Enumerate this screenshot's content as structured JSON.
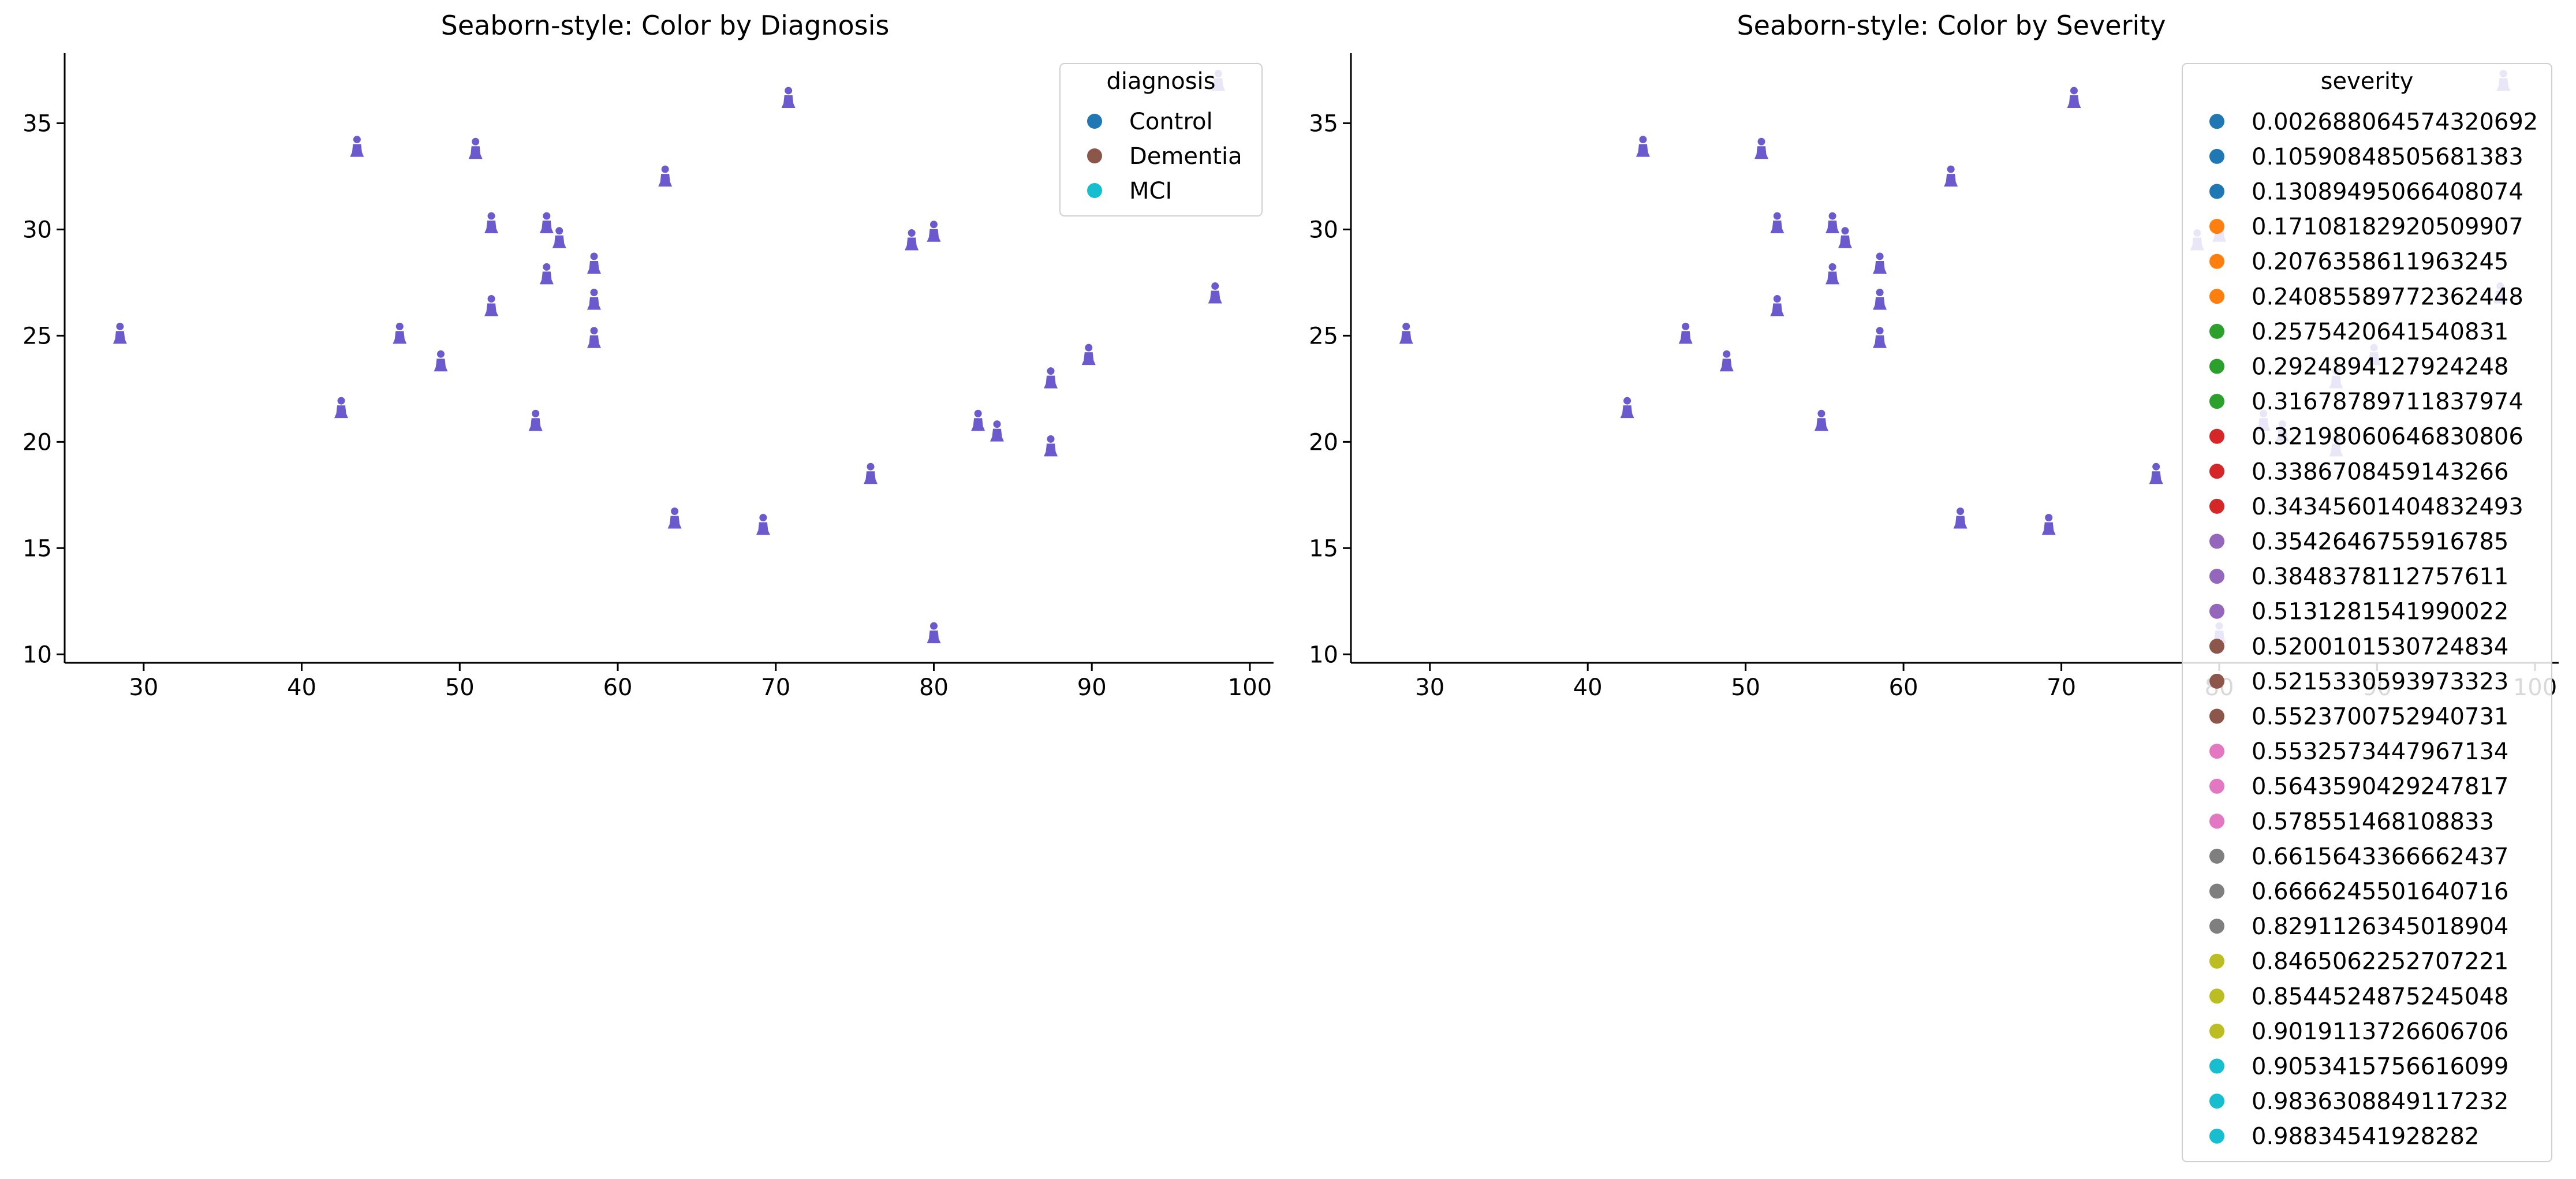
{
  "figure": {
    "background": "#ffffff",
    "marker_color": "#6a5acd",
    "marker_icon": "person-marker-icon"
  },
  "chart_data": [
    {
      "type": "scatter",
      "title": "Seaborn-style: Color by Diagnosis",
      "xlabel": "",
      "ylabel": "",
      "xlim": [
        25.0,
        101.5
      ],
      "ylim": [
        9.6,
        38.3
      ],
      "xticks": [
        30,
        40,
        50,
        60,
        70,
        80,
        90,
        100
      ],
      "yticks": [
        10,
        15,
        20,
        25,
        30,
        35
      ],
      "grid": false,
      "legend": {
        "placement": "upper-right",
        "title": "diagnosis",
        "entries": [
          {
            "label": "Control",
            "color": "#1f77b4"
          },
          {
            "label": "Dementia",
            "color": "#8c564b"
          },
          {
            "label": "MCI",
            "color": "#17becf"
          }
        ]
      }
    },
    {
      "type": "scatter",
      "title": "Seaborn-style: Color by Severity",
      "xlabel": "",
      "ylabel": "",
      "xlim": [
        25.0,
        101.5
      ],
      "ylim": [
        9.6,
        38.3
      ],
      "xticks": [
        30,
        40,
        50,
        60,
        70,
        80,
        90,
        100
      ],
      "yticks": [
        10,
        15,
        20,
        25,
        30,
        35
      ],
      "grid": false,
      "legend": {
        "placement": "upper-right",
        "title": "severity",
        "entries": [
          {
            "label": "0.002688064574320692",
            "color": "#1f77b4"
          },
          {
            "label": "0.10590848505681383",
            "color": "#1f77b4"
          },
          {
            "label": "0.13089495066408074",
            "color": "#1f77b4"
          },
          {
            "label": "0.17108182920509907",
            "color": "#ff7f0e"
          },
          {
            "label": "0.2076358611963245",
            "color": "#ff7f0e"
          },
          {
            "label": "0.24085589772362448",
            "color": "#ff7f0e"
          },
          {
            "label": "0.2575420641540831",
            "color": "#2ca02c"
          },
          {
            "label": "0.2924894127924248",
            "color": "#2ca02c"
          },
          {
            "label": "0.31678789711837974",
            "color": "#2ca02c"
          },
          {
            "label": "0.32198060646830806",
            "color": "#d62728"
          },
          {
            "label": "0.3386708459143266",
            "color": "#d62728"
          },
          {
            "label": "0.34345601404832493",
            "color": "#d62728"
          },
          {
            "label": "0.3542646755916785",
            "color": "#9467bd"
          },
          {
            "label": "0.3848378112757611",
            "color": "#9467bd"
          },
          {
            "label": "0.5131281541990022",
            "color": "#9467bd"
          },
          {
            "label": "0.5200101530724834",
            "color": "#8c564b"
          },
          {
            "label": "0.5215330593973323",
            "color": "#8c564b"
          },
          {
            "label": "0.5523700752940731",
            "color": "#8c564b"
          },
          {
            "label": "0.5532573447967134",
            "color": "#e377c2"
          },
          {
            "label": "0.5643590429247817",
            "color": "#e377c2"
          },
          {
            "label": "0.578551468108833",
            "color": "#e377c2"
          },
          {
            "label": "0.6615643366662437",
            "color": "#7f7f7f"
          },
          {
            "label": "0.6666245501640716",
            "color": "#7f7f7f"
          },
          {
            "label": "0.8291126345018904",
            "color": "#7f7f7f"
          },
          {
            "label": "0.8465062252707221",
            "color": "#bcbd22"
          },
          {
            "label": "0.8544524875245048",
            "color": "#bcbd22"
          },
          {
            "label": "0.9019113726606706",
            "color": "#bcbd22"
          },
          {
            "label": "0.9053415756616099",
            "color": "#17becf"
          },
          {
            "label": "0.9836308849117232",
            "color": "#17becf"
          },
          {
            "label": "0.98834541928282",
            "color": "#17becf"
          }
        ]
      }
    }
  ],
  "points": [
    [
      28.5,
      25.0
    ],
    [
      42.5,
      21.5
    ],
    [
      43.5,
      33.8
    ],
    [
      46.2,
      25.0
    ],
    [
      48.8,
      23.7
    ],
    [
      51.0,
      33.7
    ],
    [
      52.0,
      30.2
    ],
    [
      52.0,
      26.3
    ],
    [
      54.8,
      20.9
    ],
    [
      55.5,
      30.2
    ],
    [
      55.5,
      27.8
    ],
    [
      56.3,
      29.5
    ],
    [
      58.5,
      28.3
    ],
    [
      58.5,
      26.6
    ],
    [
      58.5,
      24.8
    ],
    [
      63.0,
      32.4
    ],
    [
      63.6,
      16.3
    ],
    [
      69.2,
      16.0
    ],
    [
      70.8,
      36.1
    ],
    [
      76.0,
      18.4
    ],
    [
      78.6,
      29.4
    ],
    [
      80.0,
      29.8
    ],
    [
      80.0,
      10.9
    ],
    [
      82.8,
      20.9
    ],
    [
      84.0,
      20.4
    ],
    [
      87.4,
      22.9
    ],
    [
      87.4,
      19.7
    ],
    [
      89.8,
      24.0
    ],
    [
      97.8,
      26.9
    ],
    [
      98.0,
      36.9
    ]
  ]
}
